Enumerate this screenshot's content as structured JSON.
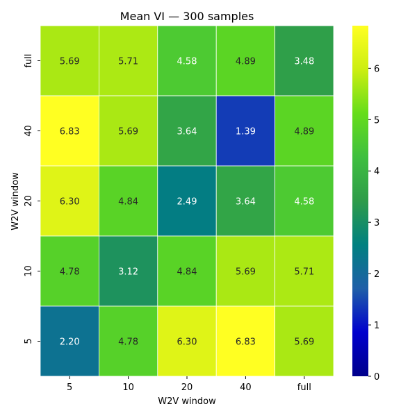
{
  "chart_data": {
    "type": "heatmap",
    "title": "Mean VI — 300 samples",
    "xlabel": "W2V window",
    "ylabel": "W2V window",
    "x_categories": [
      "5",
      "10",
      "20",
      "40",
      "full"
    ],
    "y_categories_top_to_bottom": [
      "full",
      "40",
      "20",
      "10",
      "5"
    ],
    "values": [
      [
        5.69,
        5.71,
        4.58,
        4.89,
        3.48
      ],
      [
        6.83,
        5.69,
        3.64,
        1.39,
        4.89
      ],
      [
        6.3,
        4.84,
        2.49,
        3.64,
        4.58
      ],
      [
        4.78,
        3.12,
        4.84,
        5.69,
        5.71
      ],
      [
        2.2,
        4.78,
        6.3,
        6.83,
        5.69
      ]
    ],
    "value_labels": [
      [
        "5.69",
        "5.71",
        "4.58",
        "4.89",
        "3.48"
      ],
      [
        "6.83",
        "5.69",
        "3.64",
        "1.39",
        "4.89"
      ],
      [
        "6.30",
        "4.84",
        "2.49",
        "3.64",
        "4.58"
      ],
      [
        "4.78",
        "3.12",
        "4.84",
        "5.69",
        "5.71"
      ],
      [
        "2.20",
        "4.78",
        "6.30",
        "6.83",
        "5.69"
      ]
    ],
    "colorbar": {
      "vmin": 0,
      "vmax": 6.83,
      "ticks": [
        0,
        1,
        2,
        3,
        4,
        5,
        6
      ],
      "tick_labels": [
        "0",
        "1",
        "2",
        "3",
        "4",
        "5",
        "6"
      ],
      "colormap": [
        "#00008b",
        "#0000cd",
        "#1f5fa8",
        "#008080",
        "#2e9c4a",
        "#3fbf3f",
        "#66dd1a",
        "#ccee11",
        "#ffff22"
      ]
    },
    "grid": false
  }
}
